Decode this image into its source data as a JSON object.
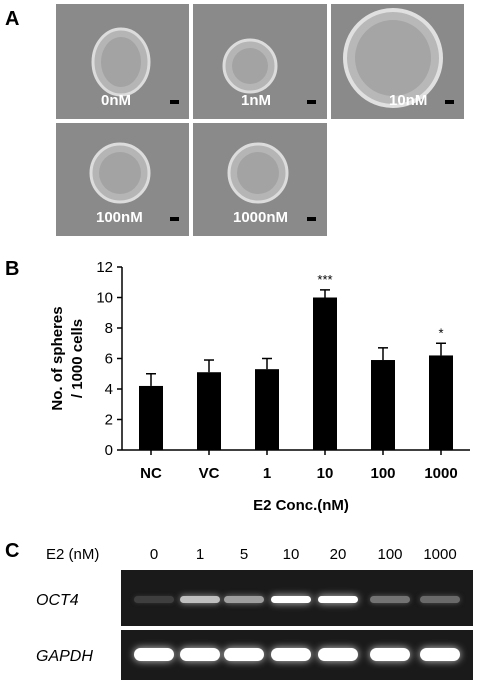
{
  "panels": {
    "a": {
      "letter": "A",
      "images": [
        {
          "label": "0nM",
          "sphere": "small"
        },
        {
          "label": "1nM",
          "sphere": "small"
        },
        {
          "label": "10nM",
          "sphere": "large"
        },
        {
          "label": "100nM",
          "sphere": "medium"
        },
        {
          "label": "1000nM",
          "sphere": "medium"
        }
      ]
    },
    "b": {
      "letter": "B"
    },
    "c": {
      "letter": "C",
      "header_label": "E2 (nM)",
      "lanes": [
        "0",
        "1",
        "5",
        "10",
        "20",
        "100",
        "1000"
      ],
      "genes": [
        "OCT4",
        "GAPDH"
      ],
      "oct4_intensity": [
        0.1,
        0.7,
        0.55,
        1.0,
        1.0,
        0.35,
        0.3
      ],
      "gapdh_intensity": [
        1,
        1,
        1,
        1,
        1,
        1,
        1
      ]
    }
  },
  "chart_data": {
    "type": "bar",
    "categories": [
      "NC",
      "VC",
      "1",
      "10",
      "100",
      "1000"
    ],
    "values": [
      4.2,
      5.1,
      5.3,
      10.0,
      5.9,
      6.2
    ],
    "errors": [
      0.8,
      0.8,
      0.7,
      0.5,
      0.8,
      0.8
    ],
    "significance": [
      "",
      "",
      "",
      "***",
      "",
      "*"
    ],
    "xlabel": "E2 Conc.(nM)",
    "ylabel_lines": [
      "No. of spheres",
      "/ 1000 cells"
    ],
    "ylim": [
      0,
      12
    ],
    "yticks": [
      0,
      2,
      4,
      6,
      8,
      10,
      12
    ],
    "grid": false
  }
}
